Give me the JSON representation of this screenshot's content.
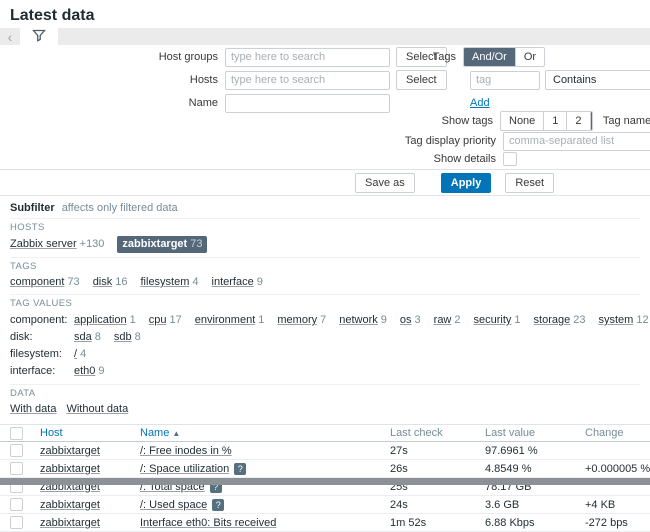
{
  "colors": {
    "accent": "#0275b8",
    "selected": "#54687a",
    "info_badge": "#57707e"
  },
  "page": {
    "title": "Latest data"
  },
  "tabbar": {
    "back_icon": "‹",
    "filter_icon": "funnel"
  },
  "filter": {
    "left_rows": [
      {
        "label": "Host groups",
        "placeholder": "type here to search",
        "button": "Select"
      },
      {
        "label": "Hosts",
        "placeholder": "type here to search",
        "button": "Select"
      },
      {
        "label": "Name",
        "placeholder": "",
        "button": ""
      }
    ],
    "tags": {
      "label": "Tags",
      "operators": [
        {
          "label": "And/Or",
          "selected": true
        },
        {
          "label": "Or",
          "selected": false
        }
      ],
      "tag_placeholder": "tag",
      "match_operator": "Contains",
      "add_label": "Add"
    },
    "show_tags": {
      "label": "Show tags",
      "options": [
        {
          "label": "None",
          "selected": false
        },
        {
          "label": "1",
          "selected": false
        },
        {
          "label": "2",
          "selected": false
        },
        {
          "label": "3",
          "selected": true
        }
      ],
      "tag_name_label": "Tag name"
    },
    "tag_display_priority": {
      "label": "Tag display priority",
      "placeholder": "comma-separated list"
    },
    "show_details": {
      "label": "Show details",
      "checked": false
    },
    "buttons": {
      "save_as": "Save as",
      "apply": "Apply",
      "reset": "Reset"
    }
  },
  "subfilter": {
    "title": "Subfilter",
    "subtitle": "affects only filtered data",
    "hosts": {
      "heading": "HOSTS",
      "items": [
        {
          "label": "Zabbix server",
          "count": "+130",
          "selected": false
        },
        {
          "label": "zabbixtarget",
          "count": "73",
          "selected": true
        }
      ]
    },
    "tags": {
      "heading": "TAGS",
      "items": [
        {
          "label": "component",
          "count": "73",
          "selected": false
        },
        {
          "label": "disk",
          "count": "16",
          "selected": false
        },
        {
          "label": "filesystem",
          "count": "4",
          "selected": false
        },
        {
          "label": "interface",
          "count": "9",
          "selected": false
        }
      ]
    },
    "tag_values": {
      "heading": "TAG VALUES",
      "rows": [
        {
          "name": "component:",
          "items": [
            [
              "application",
              "1"
            ],
            [
              "cpu",
              "17"
            ],
            [
              "environment",
              "1"
            ],
            [
              "memory",
              "7"
            ],
            [
              "network",
              "9"
            ],
            [
              "os",
              "3"
            ],
            [
              "raw",
              "2"
            ],
            [
              "security",
              "1"
            ],
            [
              "storage",
              "23"
            ],
            [
              "system",
              "12"
            ]
          ]
        },
        {
          "name": "disk:",
          "items": [
            [
              "sda",
              "8"
            ],
            [
              "sdb",
              "8"
            ]
          ]
        },
        {
          "name": "filesystem:",
          "items": [
            [
              "/",
              "4"
            ]
          ]
        },
        {
          "name": "interface:",
          "items": [
            [
              "eth0",
              "9"
            ]
          ]
        }
      ]
    },
    "data": {
      "heading": "DATA",
      "items": [
        {
          "label": "With data",
          "count": "",
          "selected": false
        },
        {
          "label": "Without data",
          "count": "",
          "selected": false
        }
      ]
    }
  },
  "table": {
    "info_icon": "?",
    "sort_icon": "▲",
    "columns": [
      {
        "label": "Host",
        "style": "link",
        "sorted": false
      },
      {
        "label": "Name",
        "style": "link",
        "sorted": true
      },
      {
        "label": "Last check",
        "style": "muted",
        "sorted": false
      },
      {
        "label": "Last value",
        "style": "muted",
        "sorted": false
      },
      {
        "label": "Change",
        "style": "muted",
        "sorted": false
      }
    ],
    "rows": [
      {
        "host": "zabbixtarget",
        "name": "/: Free inodes in %",
        "info": false,
        "last_check": "27s",
        "last_value": "97.6961 %",
        "change": ""
      },
      {
        "host": "zabbixtarget",
        "name": "/: Space utilization",
        "info": true,
        "last_check": "26s",
        "last_value": "4.8549 %",
        "change": "+0.000005 %"
      },
      {
        "host": "zabbixtarget",
        "name": "/: Total space",
        "info": true,
        "last_check": "25s",
        "last_value": "78.17 GB",
        "change": ""
      },
      {
        "host": "zabbixtarget",
        "name": "/: Used space",
        "info": true,
        "last_check": "24s",
        "last_value": "3.6 GB",
        "change": "+4 KB"
      },
      {
        "host": "zabbixtarget",
        "name": "Interface eth0: Bits received",
        "info": false,
        "last_check": "1m 52s",
        "last_value": "6.88 Kbps",
        "change": "-272 bps"
      }
    ]
  }
}
